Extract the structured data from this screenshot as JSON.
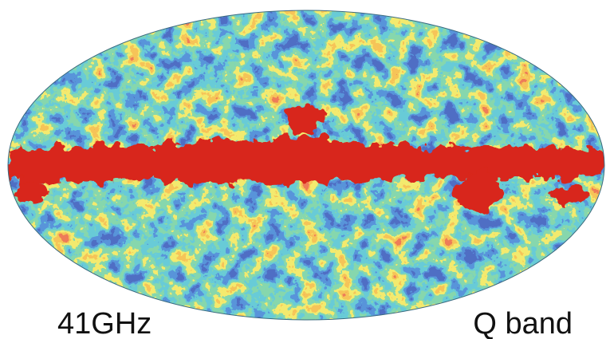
{
  "labels": {
    "frequency": "41GHz",
    "band": "Q band"
  }
}
